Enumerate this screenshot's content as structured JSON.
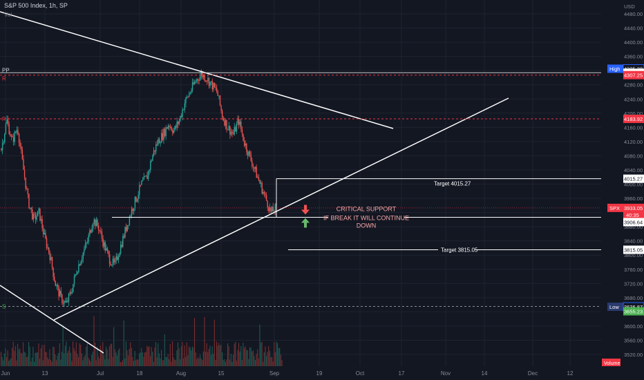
{
  "header": {
    "title": "S&P 500 Index, 1h, SP",
    "vol_label": "Vol",
    "currency": "USD"
  },
  "colors": {
    "background": "#131722",
    "up_candle": "#26a69a",
    "down_candle": "#ef5350",
    "line": "#ffffff",
    "red_text": "#f23645",
    "green_text": "#4caf50",
    "high_badge": "#2962ff",
    "low_badge": "#2962ff"
  },
  "annotations": {
    "critical_line1": "CRITICAL SUPPORT",
    "critical_line2": "IF BREAK IT WILL CONTINUE",
    "critical_line3": "DOWN",
    "target_upper": "Target 4015.27",
    "target_lower": "Target 3815.05",
    "pp_label": "PP",
    "r_label_upper": "R",
    "r_label_mid": "R",
    "s_label": "S"
  },
  "badges": {
    "high_label": "High",
    "high_value": "4325.28",
    "pp_value": "4313.91",
    "r_upper_value": "4307.25",
    "r_mid_value": "4183.92",
    "target_upper_value": "4015.27",
    "spx_label": "SPX",
    "spx_value": "3933.05",
    "spx_timer": "40:35",
    "support_value": "3906.64",
    "target_lower_value": "3815.05",
    "low_label": "Low",
    "low_value": "3636.87",
    "s_value": "3655.23",
    "volume_label": "Volume"
  },
  "chart_data": {
    "type": "candlestick",
    "title": "S&P 500 Index, 1h, SP",
    "y_axis": {
      "range": [
        3500,
        4500
      ],
      "ticks": [
        4480,
        4440,
        4400,
        4360,
        4320,
        4280,
        4240,
        4200,
        4160,
        4120,
        4080,
        4040,
        4000,
        3960,
        3920,
        3880,
        3840,
        3800,
        3760,
        3720,
        3680,
        3640,
        3600,
        3560,
        3520
      ],
      "position": "right"
    },
    "x_axis": {
      "ticks": [
        "Jun",
        "13",
        "Jul",
        "18",
        "Aug",
        "15",
        "Sep",
        "19",
        "Oct",
        "17",
        "Nov",
        "14",
        "Dec",
        "12"
      ]
    },
    "price_path": [
      4100,
      4180,
      4120,
      4160,
      4050,
      3950,
      3900,
      3920,
      3850,
      3800,
      3720,
      3680,
      3660,
      3700,
      3760,
      3800,
      3840,
      3900,
      3880,
      3830,
      3790,
      3770,
      3820,
      3870,
      3920,
      3960,
      4000,
      4020,
      4080,
      4120,
      4140,
      4170,
      4150,
      4180,
      4230,
      4260,
      4290,
      4310,
      4300,
      4280,
      4260,
      4190,
      4160,
      4140,
      4180,
      4120,
      4080,
      4040,
      4000,
      3960,
      3920,
      3933
    ],
    "horizontal_levels": [
      {
        "label": "PP",
        "value": 4313.91
      },
      {
        "label": "R",
        "value": 4307.25
      },
      {
        "label": "R",
        "value": 4183.92
      },
      {
        "label": "Target 4015.27",
        "value": 4015.27
      },
      {
        "label": "SPX",
        "value": 3933.05
      },
      {
        "label": "CRITICAL SUPPORT",
        "value": 3906.64
      },
      {
        "label": "Target 3815.05",
        "value": 3815.05
      },
      {
        "label": "Low",
        "value": 3636.87
      },
      {
        "label": "S",
        "value": 3655.23
      }
    ],
    "grid": true
  }
}
